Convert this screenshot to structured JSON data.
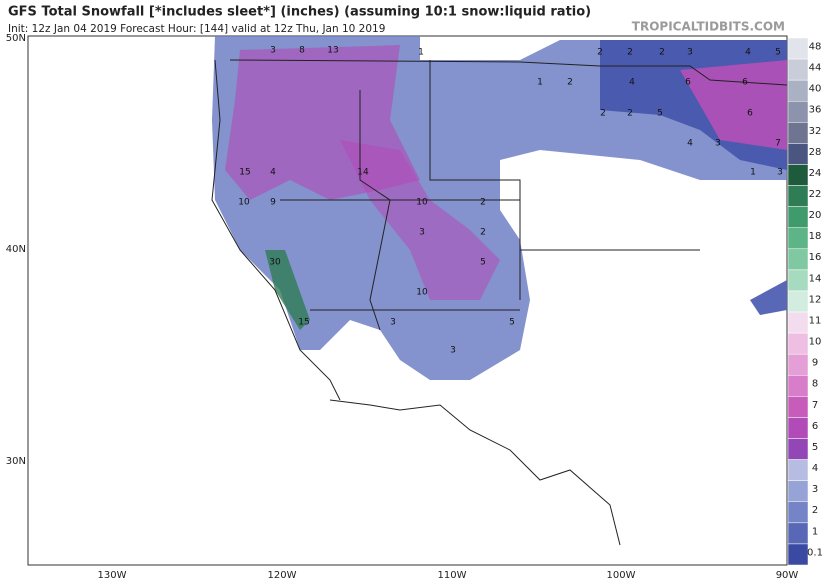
{
  "header": {
    "title": "GFS Total Snowfall [*includes sleet*] (inches) (assuming 10:1 snow:liquid ratio)",
    "subtitle": "Init: 12z Jan 04 2019   Forecast Hour: [144]   valid at 12z Thu, Jan 10 2019",
    "brand": "TROPICALTIDBITS.COM"
  },
  "map": {
    "lat_labels": [
      "50N",
      "40N",
      "30N"
    ],
    "lon_labels": [
      "130W",
      "120W",
      "110W",
      "100W",
      "90W"
    ],
    "snow_labels": [
      "1",
      "2",
      "2",
      "2",
      "3",
      "4",
      "5",
      "3",
      "8",
      "13",
      "1",
      "2",
      "4",
      "6",
      "6",
      "2",
      "2",
      "5",
      "6",
      "7",
      "3",
      "4",
      "14",
      "15",
      "4",
      "10",
      "9",
      "10",
      "2",
      "3",
      "2",
      "30",
      "5",
      "10",
      "15",
      "3",
      "5",
      "3",
      "1",
      "3"
    ]
  },
  "colorbar": {
    "labels": [
      "48",
      "44",
      "40",
      "36",
      "32",
      "28",
      "24",
      "22",
      "20",
      "18",
      "16",
      "14",
      "12",
      "11",
      "10",
      "9",
      "8",
      "7",
      "6",
      "5",
      "4",
      "3",
      "2",
      "1",
      "0.1"
    ],
    "colors": [
      "#e2e4ec",
      "#c9cdda",
      "#aab1c3",
      "#8c93ac",
      "#6d7593",
      "#4a5580",
      "#1e5a3c",
      "#2f7d55",
      "#3f9a6c",
      "#5cb487",
      "#80c8a2",
      "#a6dbbf",
      "#d2eddf",
      "#f4dcef",
      "#eebfe3",
      "#e39fd6",
      "#d77dc9",
      "#c85cbb",
      "#b14bb8",
      "#9347b6",
      "#b7bde2",
      "#96a3d6",
      "#7584c6",
      "#5868b6",
      "#3a49a2"
    ]
  }
}
